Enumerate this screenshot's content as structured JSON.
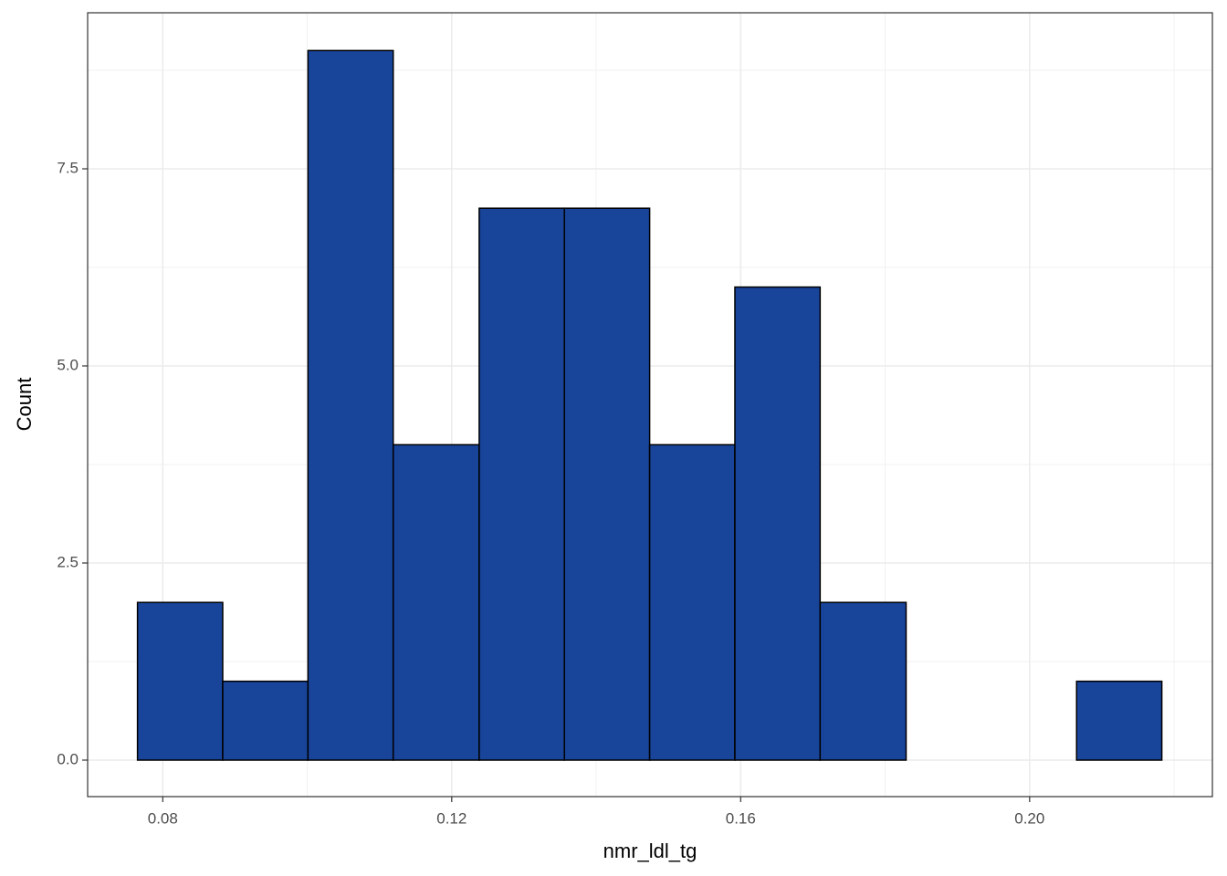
{
  "chart_data": {
    "type": "histogram",
    "x_label": "nmr_ldl_tg",
    "y_label": "Count",
    "bins": [
      0.0765,
      0.0883,
      0.1001,
      0.1119,
      0.1238,
      0.1356,
      0.1474,
      0.1592,
      0.171,
      0.1829,
      0.1947,
      0.2065,
      0.2183
    ],
    "values": [
      2,
      1,
      9,
      4,
      7,
      7,
      4,
      6,
      2,
      0,
      0,
      1
    ],
    "color": "#18449a",
    "edge_color": "#000000",
    "xlim": [
      0.0696,
      0.2253
    ],
    "ylim": [
      -0.463,
      9.479
    ],
    "xticks": [
      0.08,
      0.12,
      0.16,
      {
        "value": 0.2,
        "label": "0.20"
      }
    ],
    "yticks": [
      {
        "value": 0,
        "label": "0.0"
      },
      2.5,
      {
        "value": 5,
        "label": "5.0"
      },
      7.5
    ],
    "grid": true
  }
}
